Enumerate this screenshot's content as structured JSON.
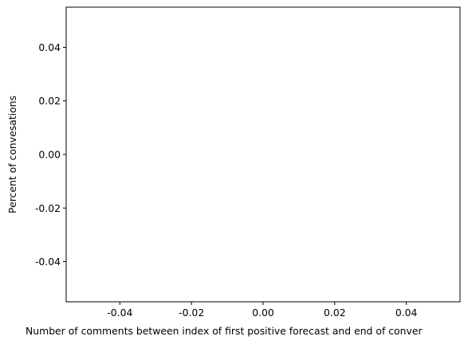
{
  "chart_data": {
    "type": "bar",
    "title": "",
    "xlabel": "Number of comments between index of first positive forecast and end of conver",
    "ylabel": "Percent of convesations",
    "xlim": [
      -0.055,
      0.055
    ],
    "ylim": [
      -0.055,
      0.055
    ],
    "x_ticks": [
      "-0.04",
      "-0.02",
      "0.00",
      "0.02",
      "0.04"
    ],
    "y_ticks": [
      "0.04",
      "0.02",
      "0.00",
      "-0.02",
      "-0.04"
    ],
    "x_tick_values": [
      -0.04,
      -0.02,
      0.0,
      0.02,
      0.04
    ],
    "y_tick_values": [
      0.04,
      0.02,
      0.0,
      -0.02,
      -0.04
    ],
    "series": [],
    "grid": false,
    "legend": "none"
  }
}
